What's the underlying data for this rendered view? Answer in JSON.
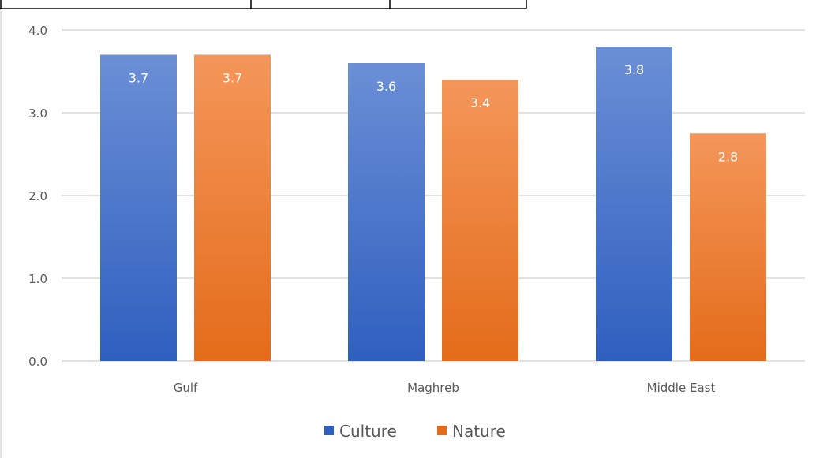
{
  "colors": {
    "culture_top": "#6b8fd6",
    "culture_bottom": "#2f5fbf",
    "nature_top": "#f4965a",
    "nature_bottom": "#e46c1a",
    "grid": "#d9d9d9",
    "axis_text": "#595959",
    "header_border": "#000000"
  },
  "chart_data": {
    "type": "bar",
    "title": "",
    "xlabel": "",
    "ylabel": "",
    "categories": [
      "Gulf",
      "Maghreb",
      "Middle East"
    ],
    "series": [
      {
        "name": "Culture",
        "values": [
          3.7,
          3.6,
          3.8
        ],
        "labels": [
          "3.7",
          "3.6",
          "3.8"
        ]
      },
      {
        "name": "Nature",
        "values": [
          3.7,
          3.4,
          2.75
        ],
        "labels": [
          "3.7",
          "3.4",
          "2.8"
        ]
      }
    ],
    "ylim": [
      0,
      4
    ],
    "yticks": [
      "0.0",
      "1.0",
      "2.0",
      "3.0",
      "4.0"
    ],
    "grid": true,
    "legend_position": "bottom-center"
  }
}
